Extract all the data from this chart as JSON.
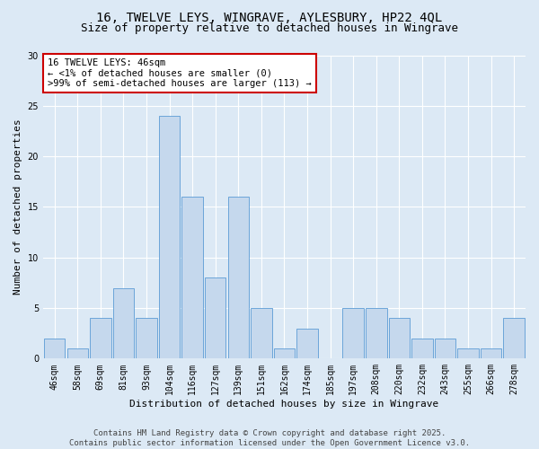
{
  "title": "16, TWELVE LEYS, WINGRAVE, AYLESBURY, HP22 4QL",
  "subtitle": "Size of property relative to detached houses in Wingrave",
  "xlabel": "Distribution of detached houses by size in Wingrave",
  "ylabel": "Number of detached properties",
  "bin_labels": [
    "46sqm",
    "58sqm",
    "69sqm",
    "81sqm",
    "93sqm",
    "104sqm",
    "116sqm",
    "127sqm",
    "139sqm",
    "151sqm",
    "162sqm",
    "174sqm",
    "185sqm",
    "197sqm",
    "208sqm",
    "220sqm",
    "232sqm",
    "243sqm",
    "255sqm",
    "266sqm",
    "278sqm"
  ],
  "values": [
    2,
    1,
    4,
    7,
    4,
    24,
    16,
    8,
    16,
    5,
    1,
    3,
    0,
    5,
    5,
    4,
    2,
    2,
    1,
    1,
    4
  ],
  "bar_color": "#c5d8ed",
  "bar_edge_color": "#5b9bd5",
  "bg_color": "#dce9f5",
  "grid_color": "#ffffff",
  "annotation_box_color": "#ffffff",
  "annotation_box_edge": "#cc0000",
  "annotation_line1": "16 TWELVE LEYS: 46sqm",
  "annotation_line2": "← <1% of detached houses are smaller (0)",
  "annotation_line3": ">99% of semi-detached houses are larger (113) →",
  "ylim": [
    0,
    30
  ],
  "yticks": [
    0,
    5,
    10,
    15,
    20,
    25,
    30
  ],
  "footer": "Contains HM Land Registry data © Crown copyright and database right 2025.\nContains public sector information licensed under the Open Government Licence v3.0.",
  "title_fontsize": 10,
  "subtitle_fontsize": 9,
  "axis_label_fontsize": 8,
  "tick_fontsize": 7,
  "annotation_fontsize": 7.5,
  "footer_fontsize": 6.5
}
